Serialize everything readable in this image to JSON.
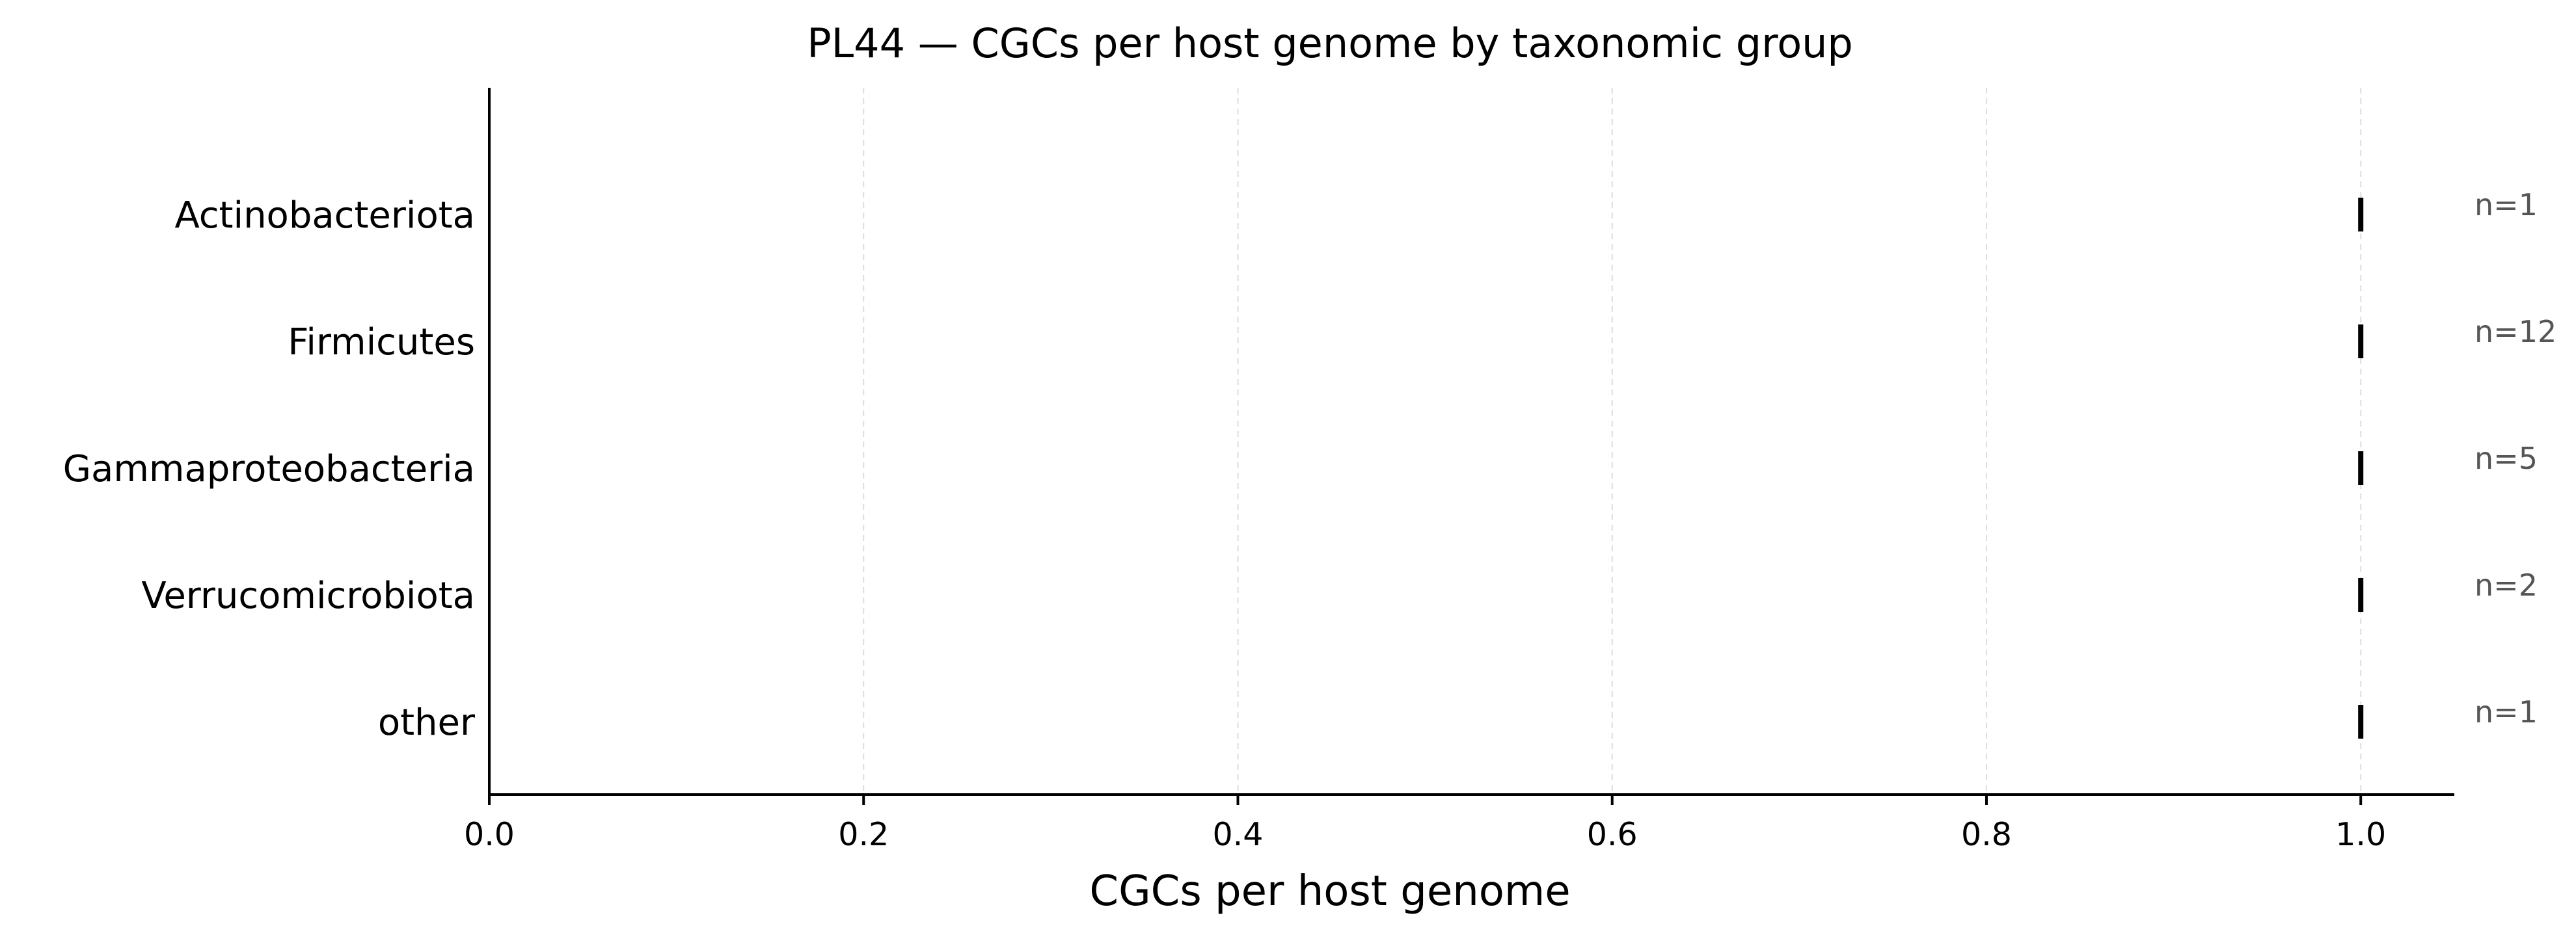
{
  "chart_data": {
    "type": "scatter",
    "title": "PL44 — CGCs per host genome by taxonomic group",
    "xlabel": "CGCs per host genome",
    "ylabel": "",
    "xlim": [
      0,
      1.05
    ],
    "xticks": [
      0.0,
      0.2,
      0.4,
      0.6,
      0.8,
      1.0
    ],
    "xtick_labels": [
      "0.0",
      "0.2",
      "0.4",
      "0.6",
      "0.8",
      "1.0"
    ],
    "grid": "vertical dashed",
    "categories": [
      "Actinobacteriota",
      "Firmicutes",
      "Gammaproteobacteria",
      "Verrucomicrobiota",
      "other"
    ],
    "values": [
      1.0,
      1.0,
      1.0,
      1.0,
      1.0
    ],
    "n_labels": [
      "n=1",
      "n=12",
      "n=5",
      "n=2",
      "n=1"
    ],
    "counts": [
      1,
      12,
      5,
      2,
      1
    ],
    "marker_color": "#000000",
    "annotation_color": "#555555"
  }
}
